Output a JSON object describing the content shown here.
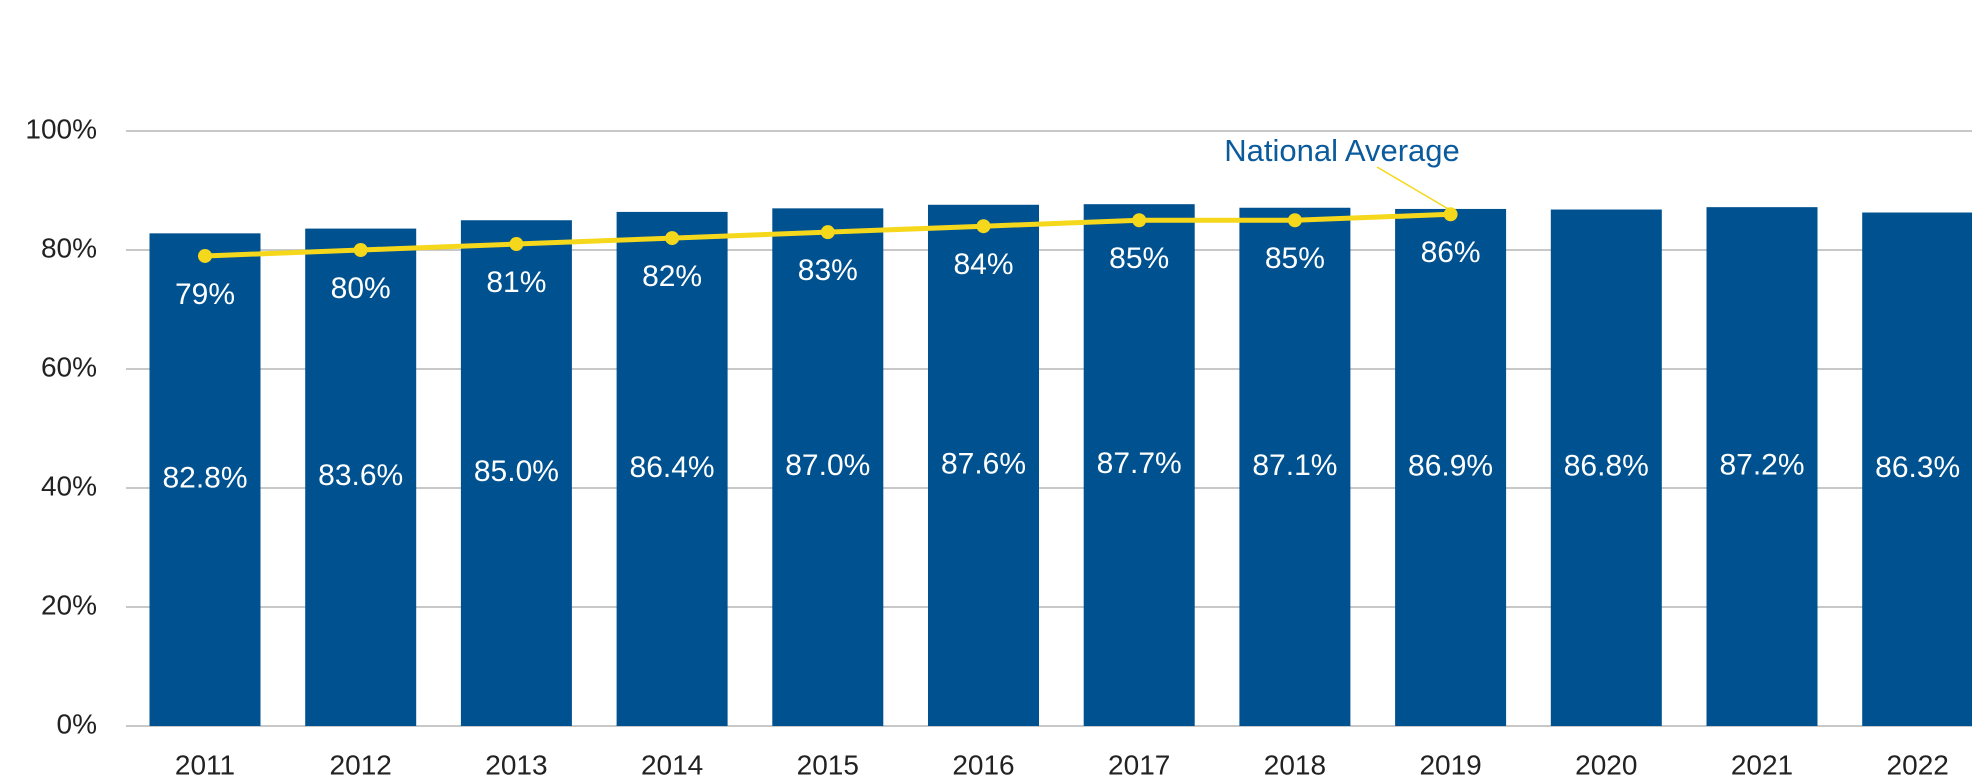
{
  "chart_data": {
    "type": "bar",
    "categories": [
      "2011",
      "2012",
      "2013",
      "2014",
      "2015",
      "2016",
      "2017",
      "2018",
      "2019",
      "2020",
      "2021",
      "2022"
    ],
    "series": [
      {
        "type": "bar",
        "color": "#00518f",
        "values": [
          82.8,
          83.6,
          85.0,
          86.4,
          87.0,
          87.6,
          87.7,
          87.1,
          86.9,
          86.8,
          87.2,
          86.3
        ],
        "value_labels": [
          "82.8%",
          "83.6%",
          "85.0%",
          "86.4%",
          "87.0%",
          "87.6%",
          "87.7%",
          "87.1%",
          "86.9%",
          "86.8%",
          "87.2%",
          "86.3%"
        ]
      },
      {
        "type": "line",
        "name": "National Average",
        "color": "#f5d81c",
        "values": [
          79,
          80,
          81,
          82,
          83,
          84,
          85,
          85,
          86,
          null,
          null,
          null
        ],
        "value_labels": [
          "79%",
          "80%",
          "81%",
          "82%",
          "83%",
          "84%",
          "85%",
          "85%",
          "86%",
          null,
          null,
          null
        ]
      }
    ],
    "ylim": [
      0,
      100
    ],
    "yticks": [
      {
        "value": 0,
        "label": "0%"
      },
      {
        "value": 20,
        "label": "20%"
      },
      {
        "value": 40,
        "label": "40%"
      },
      {
        "value": 60,
        "label": "60%"
      },
      {
        "value": 80,
        "label": "80%"
      },
      {
        "value": 100,
        "label": "100%"
      }
    ],
    "grid": true
  }
}
